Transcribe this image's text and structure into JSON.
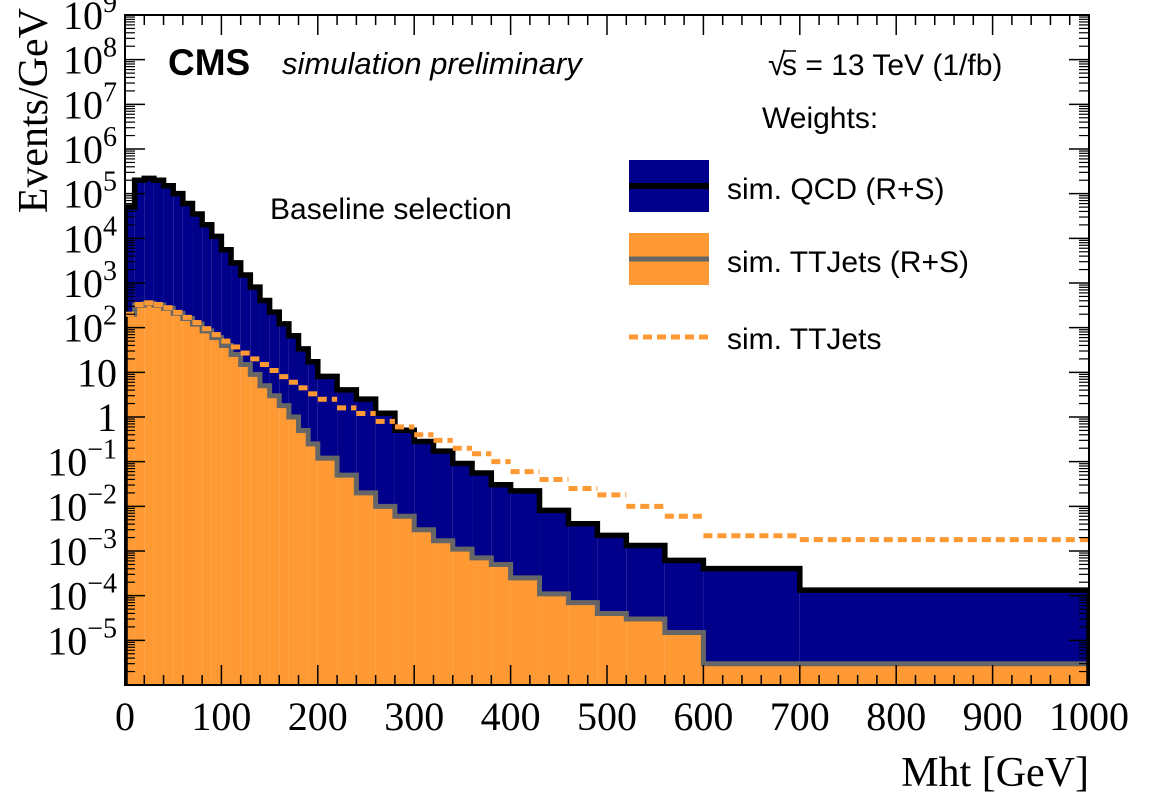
{
  "chart_data": {
    "type": "histogram",
    "title_bold": "CMS",
    "title_italic": "simulation preliminary",
    "energy_label": "s = 13 TeV (1/fb)",
    "annotation": "Baseline selection",
    "xlabel": "Mht [GeV]",
    "ylabel": "Events/GeV",
    "xlim": [
      0,
      1000
    ],
    "ylim": [
      1e-06,
      1000000000.0
    ],
    "log_y": true,
    "legend_header": "Weights:",
    "legend_position": "top-right",
    "x_ticks": [
      "0",
      "100",
      "200",
      "300",
      "400",
      "500",
      "600",
      "700",
      "800",
      "900",
      "1000"
    ],
    "y_ticks": [
      {
        "v": 1e-05,
        "base": "10",
        "exp": "−5"
      },
      {
        "v": 0.0001,
        "base": "10",
        "exp": "−4"
      },
      {
        "v": 0.001,
        "base": "10",
        "exp": "−3"
      },
      {
        "v": 0.01,
        "base": "10",
        "exp": "−2"
      },
      {
        "v": 0.1,
        "base": "10",
        "exp": "−1"
      },
      {
        "v": 1,
        "base": "1",
        "exp": ""
      },
      {
        "v": 10,
        "base": "10",
        "exp": ""
      },
      {
        "v": 100,
        "base": "10",
        "exp": "2"
      },
      {
        "v": 1000,
        "base": "10",
        "exp": "3"
      },
      {
        "v": 10000,
        "base": "10",
        "exp": "4"
      },
      {
        "v": 100000,
        "base": "10",
        "exp": "5"
      },
      {
        "v": 1000000,
        "base": "10",
        "exp": "6"
      },
      {
        "v": 10000000,
        "base": "10",
        "exp": "7"
      },
      {
        "v": 100000000,
        "base": "10",
        "exp": "8"
      },
      {
        "v": 1000000000,
        "base": "10",
        "exp": "9"
      }
    ],
    "bin_edges": [
      0,
      10,
      20,
      30,
      40,
      50,
      60,
      70,
      80,
      90,
      100,
      110,
      120,
      130,
      140,
      150,
      160,
      170,
      180,
      190,
      200,
      220,
      240,
      260,
      280,
      300,
      320,
      340,
      360,
      380,
      400,
      430,
      460,
      490,
      520,
      560,
      600,
      700,
      1000
    ],
    "series": [
      {
        "name": "sim. QCD (R+S)",
        "style": "stacked-fill",
        "fill": "#00008b",
        "line": "#000000",
        "values": [
          50000,
          200000,
          220000,
          200000,
          150000,
          100000,
          60000,
          35000,
          20000,
          11000,
          5500,
          2800,
          1500,
          800,
          400,
          220,
          120,
          65,
          33,
          17,
          8,
          4,
          2.5,
          1.2,
          0.5,
          0.28,
          0.17,
          0.09,
          0.055,
          0.03,
          0.022,
          0.008,
          0.004,
          0.0022,
          0.0013,
          0.0006,
          0.0004,
          0.00013
        ]
      },
      {
        "name": "sim. TTJets (R+S)",
        "style": "stacked-fill",
        "fill": "#ff9933",
        "line": "#666666",
        "values": [
          200,
          320,
          350,
          320,
          270,
          210,
          160,
          120,
          85,
          60,
          40,
          25,
          15,
          9,
          5,
          3,
          1.8,
          1,
          0.5,
          0.25,
          0.12,
          0.05,
          0.02,
          0.01,
          0.006,
          0.003,
          0.0017,
          0.0011,
          0.0007,
          0.0005,
          0.00025,
          0.00011,
          7e-05,
          4e-05,
          3e-05,
          1.5e-05,
          3e-06,
          3e-06
        ]
      },
      {
        "name": "sim. TTJets",
        "style": "dashed-line",
        "line": "#ff9933",
        "values": [
          200,
          330,
          360,
          330,
          280,
          220,
          170,
          130,
          95,
          70,
          50,
          37,
          27,
          20,
          15,
          11,
          8,
          6,
          4.5,
          3.3,
          2.5,
          1.6,
          1.2,
          0.8,
          0.6,
          0.4,
          0.3,
          0.2,
          0.15,
          0.1,
          0.06,
          0.04,
          0.025,
          0.018,
          0.01,
          0.006,
          0.0022,
          0.0018
        ]
      }
    ]
  }
}
